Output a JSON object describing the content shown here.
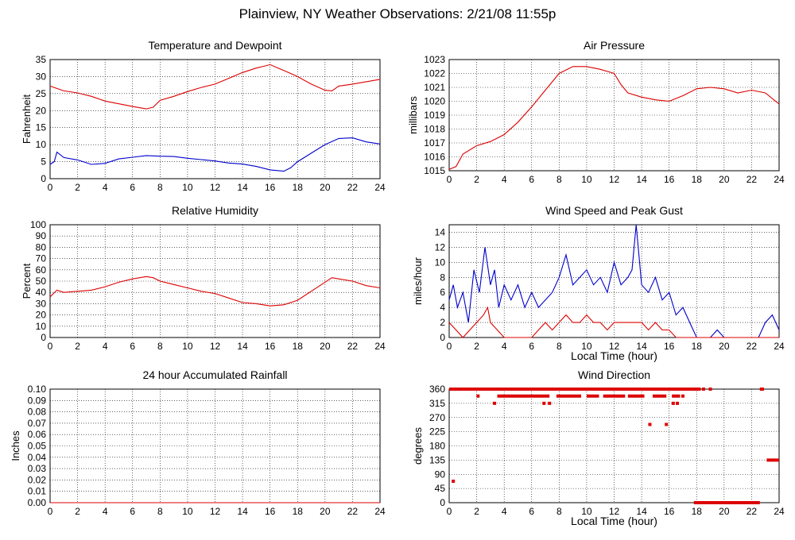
{
  "page": {
    "title": "Plainview, NY Weather Observations: 2/21/08 11:55p"
  },
  "chart_data": [
    {
      "id": "temp",
      "type": "line",
      "title": "Temperature and Dewpoint",
      "xlabel": "",
      "ylabel": "Fahrenheit",
      "xlim": [
        0,
        24
      ],
      "ylim": [
        0,
        35
      ],
      "xticks": [
        0,
        2,
        4,
        6,
        8,
        10,
        12,
        14,
        16,
        18,
        20,
        22,
        24
      ],
      "yticks": [
        0,
        5,
        10,
        15,
        20,
        25,
        30,
        35
      ],
      "grid": true,
      "series": [
        {
          "color": "#dd0000",
          "points": [
            [
              0,
              27.2
            ],
            [
              0.5,
              26.5
            ],
            [
              1,
              25.8
            ],
            [
              2,
              25.2
            ],
            [
              3,
              24.2
            ],
            [
              4,
              22.8
            ],
            [
              5,
              22.0
            ],
            [
              6,
              21.2
            ],
            [
              7,
              20.5
            ],
            [
              7.5,
              21.0
            ],
            [
              8,
              23.0
            ],
            [
              9,
              24.2
            ],
            [
              10,
              25.6
            ],
            [
              11,
              26.8
            ],
            [
              12,
              27.8
            ],
            [
              13,
              29.5
            ],
            [
              14,
              31.2
            ],
            [
              15,
              32.5
            ],
            [
              15.5,
              33.0
            ],
            [
              16,
              33.5
            ],
            [
              17,
              31.8
            ],
            [
              18,
              30.0
            ],
            [
              19,
              27.8
            ],
            [
              20,
              26.0
            ],
            [
              20.5,
              25.8
            ],
            [
              21,
              27.2
            ],
            [
              22,
              27.8
            ],
            [
              23,
              28.5
            ],
            [
              24,
              29.2
            ]
          ]
        },
        {
          "color": "#0000cc",
          "points": [
            [
              0,
              4.2
            ],
            [
              0.3,
              5.0
            ],
            [
              0.5,
              7.8
            ],
            [
              1,
              6.2
            ],
            [
              2,
              5.5
            ],
            [
              3,
              4.2
            ],
            [
              4,
              4.5
            ],
            [
              5,
              5.8
            ],
            [
              6,
              6.3
            ],
            [
              7,
              6.8
            ],
            [
              8,
              6.6
            ],
            [
              9,
              6.5
            ],
            [
              10,
              6.0
            ],
            [
              11,
              5.6
            ],
            [
              12,
              5.2
            ],
            [
              13,
              4.6
            ],
            [
              14,
              4.3
            ],
            [
              15,
              3.6
            ],
            [
              16,
              2.6
            ],
            [
              17,
              2.2
            ],
            [
              17.5,
              3.2
            ],
            [
              18,
              5.0
            ],
            [
              19,
              7.5
            ],
            [
              20,
              10.0
            ],
            [
              21,
              11.8
            ],
            [
              22,
              12.0
            ],
            [
              23,
              10.8
            ],
            [
              24,
              10.2
            ]
          ]
        }
      ]
    },
    {
      "id": "pressure",
      "type": "line",
      "title": "Air Pressure",
      "xlabel": "",
      "ylabel": "millibars",
      "xlim": [
        0,
        24
      ],
      "ylim": [
        1015,
        1023
      ],
      "xticks": [
        0,
        2,
        4,
        6,
        8,
        10,
        12,
        14,
        16,
        18,
        20,
        22,
        24
      ],
      "yticks": [
        1015,
        1016,
        1017,
        1018,
        1019,
        1020,
        1021,
        1022,
        1023
      ],
      "grid": true,
      "series": [
        {
          "color": "#dd0000",
          "points": [
            [
              0,
              1015.1
            ],
            [
              0.5,
              1015.3
            ],
            [
              1,
              1016.2
            ],
            [
              2,
              1016.8
            ],
            [
              3,
              1017.1
            ],
            [
              4,
              1017.6
            ],
            [
              5,
              1018.5
            ],
            [
              6,
              1019.6
            ],
            [
              7,
              1020.8
            ],
            [
              8,
              1022.0
            ],
            [
              9,
              1022.5
            ],
            [
              10,
              1022.5
            ],
            [
              11,
              1022.3
            ],
            [
              12,
              1022.0
            ],
            [
              12.5,
              1021.2
            ],
            [
              13,
              1020.6
            ],
            [
              14,
              1020.3
            ],
            [
              15,
              1020.1
            ],
            [
              16,
              1020.0
            ],
            [
              17,
              1020.4
            ],
            [
              18,
              1020.9
            ],
            [
              19,
              1021.0
            ],
            [
              20,
              1020.9
            ],
            [
              21,
              1020.6
            ],
            [
              22,
              1020.8
            ],
            [
              23,
              1020.6
            ],
            [
              24,
              1019.8
            ]
          ]
        }
      ]
    },
    {
      "id": "humidity",
      "type": "line",
      "title": "Relative Humidity",
      "xlabel": "",
      "ylabel": "Percent",
      "xlim": [
        0,
        24
      ],
      "ylim": [
        0,
        100
      ],
      "xticks": [
        0,
        2,
        4,
        6,
        8,
        10,
        12,
        14,
        16,
        18,
        20,
        22,
        24
      ],
      "yticks": [
        0,
        10,
        20,
        30,
        40,
        50,
        60,
        70,
        80,
        90,
        100
      ],
      "grid": true,
      "series": [
        {
          "color": "#dd0000",
          "points": [
            [
              0,
              36
            ],
            [
              0.5,
              42
            ],
            [
              1,
              40
            ],
            [
              2,
              41
            ],
            [
              3,
              42
            ],
            [
              4,
              45
            ],
            [
              5,
              49
            ],
            [
              6,
              52
            ],
            [
              7,
              54
            ],
            [
              7.5,
              53
            ],
            [
              8,
              50
            ],
            [
              9,
              47
            ],
            [
              10,
              44
            ],
            [
              11,
              41
            ],
            [
              12,
              39
            ],
            [
              13,
              35
            ],
            [
              14,
              31
            ],
            [
              15,
              30
            ],
            [
              16,
              28
            ],
            [
              17,
              29
            ],
            [
              18,
              33
            ],
            [
              19,
              41
            ],
            [
              20,
              49
            ],
            [
              20.5,
              53
            ],
            [
              21,
              52
            ],
            [
              22,
              50
            ],
            [
              23,
              46
            ],
            [
              24,
              44
            ]
          ]
        }
      ]
    },
    {
      "id": "wind",
      "type": "line",
      "title": "Wind Speed and Peak Gust",
      "xlabel": "Local Time (hour)",
      "ylabel": "miles/hour",
      "xlim": [
        0,
        24
      ],
      "ylim": [
        0,
        15
      ],
      "xticks": [
        0,
        2,
        4,
        6,
        8,
        10,
        12,
        14,
        16,
        18,
        20,
        22,
        24
      ],
      "yticks": [
        0,
        2,
        4,
        6,
        8,
        10,
        12,
        14
      ],
      "grid": true,
      "series": [
        {
          "color": "#0000cc",
          "points": [
            [
              0,
              5
            ],
            [
              0.3,
              7
            ],
            [
              0.6,
              4
            ],
            [
              1,
              6
            ],
            [
              1.4,
              2
            ],
            [
              1.8,
              9
            ],
            [
              2.2,
              6
            ],
            [
              2.6,
              12
            ],
            [
              3,
              7
            ],
            [
              3.3,
              9
            ],
            [
              3.6,
              4
            ],
            [
              4,
              7
            ],
            [
              4.5,
              5
            ],
            [
              5,
              7
            ],
            [
              5.5,
              4
            ],
            [
              6,
              6
            ],
            [
              6.5,
              4
            ],
            [
              7,
              5
            ],
            [
              7.5,
              6
            ],
            [
              8,
              8
            ],
            [
              8.5,
              11
            ],
            [
              9,
              7
            ],
            [
              9.5,
              8
            ],
            [
              10,
              9
            ],
            [
              10.5,
              7
            ],
            [
              11,
              8
            ],
            [
              11.5,
              6
            ],
            [
              12,
              10
            ],
            [
              12.5,
              7
            ],
            [
              13,
              8
            ],
            [
              13.3,
              9
            ],
            [
              13.6,
              15
            ],
            [
              14,
              7
            ],
            [
              14.5,
              6
            ],
            [
              15,
              8
            ],
            [
              15.5,
              5
            ],
            [
              16,
              6
            ],
            [
              16.5,
              3
            ],
            [
              17,
              4
            ],
            [
              17.5,
              2
            ],
            [
              18,
              0
            ],
            [
              19,
              0
            ],
            [
              19.5,
              1
            ],
            [
              20,
              0
            ],
            [
              22,
              0
            ],
            [
              22.5,
              0
            ],
            [
              23,
              2
            ],
            [
              23.5,
              3
            ],
            [
              24,
              1
            ]
          ]
        },
        {
          "color": "#dd0000",
          "points": [
            [
              0,
              2
            ],
            [
              0.5,
              1
            ],
            [
              1,
              0
            ],
            [
              1.5,
              1
            ],
            [
              2,
              2
            ],
            [
              2.5,
              3
            ],
            [
              2.8,
              4
            ],
            [
              3,
              2
            ],
            [
              3.5,
              1
            ],
            [
              4,
              0
            ],
            [
              5,
              0
            ],
            [
              6,
              0
            ],
            [
              6.5,
              1
            ],
            [
              7,
              2
            ],
            [
              7.5,
              1
            ],
            [
              8,
              2
            ],
            [
              8.5,
              3
            ],
            [
              9,
              2
            ],
            [
              9.5,
              2
            ],
            [
              10,
              3
            ],
            [
              10.5,
              2
            ],
            [
              11,
              2
            ],
            [
              11.5,
              1
            ],
            [
              12,
              2
            ],
            [
              12.5,
              2
            ],
            [
              13,
              2
            ],
            [
              13.5,
              2
            ],
            [
              14,
              2
            ],
            [
              14.5,
              1
            ],
            [
              15,
              2
            ],
            [
              15.5,
              1
            ],
            [
              16,
              1
            ],
            [
              16.5,
              0
            ],
            [
              17,
              0
            ],
            [
              24,
              0
            ]
          ]
        }
      ]
    },
    {
      "id": "rain",
      "type": "line",
      "title": "24 hour Accumulated Rainfall",
      "xlabel": "",
      "ylabel": "Inches",
      "xlim": [
        0,
        24
      ],
      "ylim": [
        0,
        0.1
      ],
      "xticks": [
        0,
        2,
        4,
        6,
        8,
        10,
        12,
        14,
        16,
        18,
        20,
        22,
        24
      ],
      "yticks": [
        "0.00",
        "0.01",
        "0.02",
        "0.03",
        "0.04",
        "0.05",
        "0.06",
        "0.07",
        "0.08",
        "0.09",
        "0.10"
      ],
      "grid": true,
      "series": [
        {
          "color": "#dd0000",
          "points": [
            [
              0,
              0
            ],
            [
              24,
              0
            ]
          ]
        }
      ]
    },
    {
      "id": "direction",
      "type": "scatter",
      "title": "Wind Direction",
      "xlabel": "Local Time (hour)",
      "ylabel": "degrees",
      "xlim": [
        0,
        24
      ],
      "ylim": [
        0,
        360
      ],
      "xticks": [
        0,
        2,
        4,
        6,
        8,
        10,
        12,
        14,
        16,
        18,
        20,
        22,
        24
      ],
      "yticks": [
        0,
        45,
        90,
        135,
        180,
        225,
        270,
        315,
        360
      ],
      "grid": true,
      "series": [
        {
          "color": "#dd0000",
          "segments": [
            [
              0,
              18.3,
              360
            ],
            [
              3.5,
              7.3,
              338
            ],
            [
              7.8,
              9.6,
              338
            ],
            [
              10,
              10.9,
              338
            ],
            [
              11.2,
              12.8,
              338
            ],
            [
              13,
              14.2,
              338
            ],
            [
              14.8,
              15.8,
              338
            ],
            [
              16.2,
              16.8,
              338
            ],
            [
              17.8,
              22.6,
              0
            ],
            [
              22.6,
              22.9,
              360
            ],
            [
              23.1,
              24,
              135
            ]
          ],
          "points": [
            [
              0.3,
              68
            ],
            [
              2.1,
              338
            ],
            [
              3.3,
              315
            ],
            [
              6.9,
              315
            ],
            [
              7.3,
              315
            ],
            [
              14.6,
              248
            ],
            [
              15.8,
              248
            ],
            [
              16.3,
              315
            ],
            [
              16.6,
              315
            ],
            [
              17.0,
              338
            ],
            [
              17.4,
              360
            ],
            [
              18.5,
              360
            ],
            [
              19.0,
              360
            ]
          ]
        }
      ]
    }
  ]
}
